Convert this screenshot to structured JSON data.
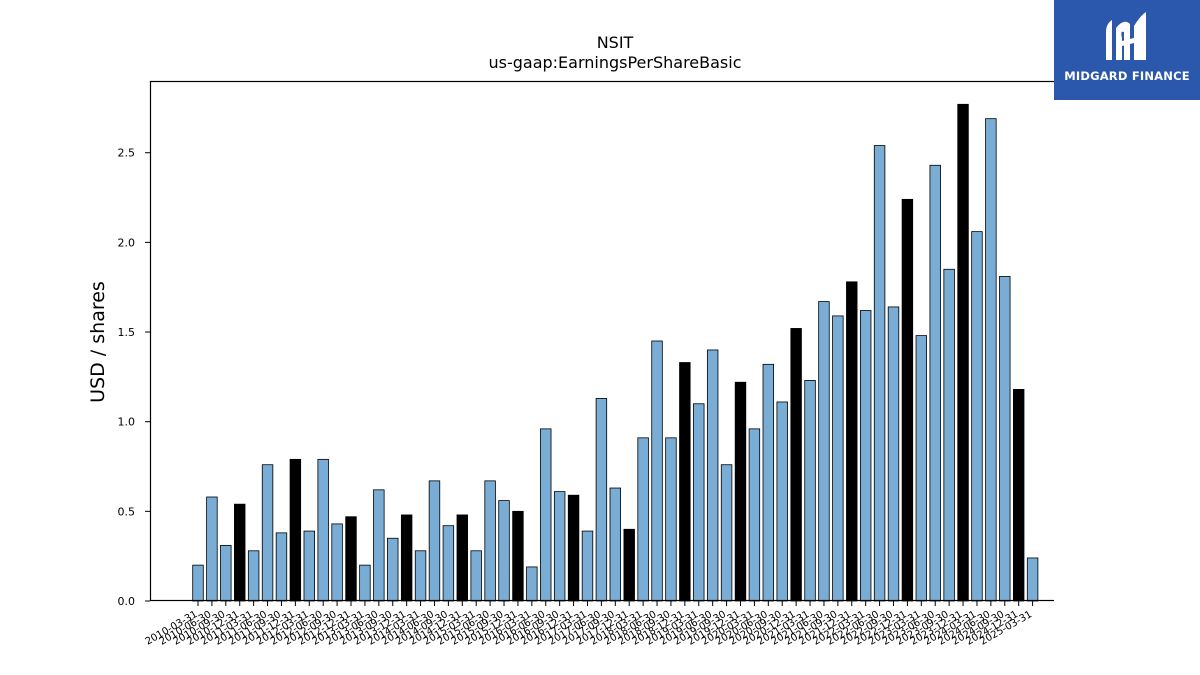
{
  "brand": {
    "name": "MIDGARD FINANCE",
    "background": "#2b58ad"
  },
  "chart_data": {
    "type": "bar",
    "title": "NSIT",
    "subtitle": "us-gaap:EarningsPerShareBasic",
    "xlabel": "",
    "ylabel": "USD / shares",
    "ylim": [
      0,
      2.9
    ],
    "yticks": [
      "0.0",
      "0.5",
      "1.0",
      "1.5",
      "2.0",
      "2.5"
    ],
    "colors": {
      "quarter": "#7aadd5",
      "annual": "#000000",
      "edge": "#000000"
    },
    "categories": [
      "2010-03-31",
      "2010-06-30",
      "2010-09-30",
      "2010-12-31",
      "2011-03-31",
      "2011-06-30",
      "2011-09-30",
      "2011-12-31",
      "2012-03-31",
      "2012-06-30",
      "2012-09-30",
      "2012-12-31",
      "2013-03-31",
      "2013-06-30",
      "2013-09-30",
      "2013-12-31",
      "2014-03-31",
      "2014-06-30",
      "2014-09-30",
      "2014-12-31",
      "2015-03-31",
      "2015-06-30",
      "2015-09-30",
      "2015-12-31",
      "2016-03-31",
      "2016-06-30",
      "2016-09-30",
      "2016-12-31",
      "2017-03-31",
      "2017-06-30",
      "2017-09-30",
      "2017-12-31",
      "2018-03-31",
      "2018-06-30",
      "2018-09-30",
      "2018-12-31",
      "2019-03-31",
      "2019-06-30",
      "2019-09-30",
      "2019-12-31",
      "2020-03-31",
      "2020-06-30",
      "2020-09-30",
      "2020-12-31",
      "2021-03-31",
      "2021-06-30",
      "2021-09-30",
      "2021-12-31",
      "2022-03-31",
      "2022-06-30",
      "2022-09-30",
      "2022-12-31",
      "2023-03-31",
      "2023-06-30",
      "2023-09-30",
      "2023-12-31",
      "2024-03-31",
      "2024-06-30",
      "2024-09-30",
      "2024-12-31",
      "2025-03-31"
    ],
    "values": [
      0.2,
      0.58,
      0.31,
      0.54,
      0.28,
      0.76,
      0.38,
      0.79,
      0.39,
      0.79,
      0.43,
      0.47,
      0.2,
      0.62,
      0.35,
      0.48,
      0.28,
      0.67,
      0.42,
      0.48,
      0.28,
      0.67,
      0.56,
      0.5,
      0.19,
      0.96,
      0.61,
      0.59,
      0.39,
      1.13,
      0.63,
      0.4,
      0.91,
      1.45,
      0.91,
      1.33,
      1.1,
      1.4,
      0.76,
      1.22,
      0.96,
      1.32,
      1.11,
      1.52,
      1.23,
      1.67,
      1.59,
      1.78,
      1.62,
      2.54,
      1.64,
      2.24,
      1.48,
      2.43,
      1.85,
      2.77,
      2.06,
      2.69,
      1.81,
      1.18,
      0.24
    ],
    "annual": [
      false,
      false,
      false,
      true,
      false,
      false,
      false,
      true,
      false,
      false,
      false,
      true,
      false,
      false,
      false,
      true,
      false,
      false,
      false,
      true,
      false,
      false,
      false,
      true,
      false,
      false,
      false,
      true,
      false,
      false,
      false,
      true,
      false,
      false,
      false,
      true,
      false,
      false,
      false,
      true,
      false,
      false,
      false,
      true,
      false,
      false,
      false,
      true,
      false,
      false,
      false,
      true,
      false,
      false,
      false,
      true,
      false,
      false,
      false,
      true,
      false
    ]
  }
}
